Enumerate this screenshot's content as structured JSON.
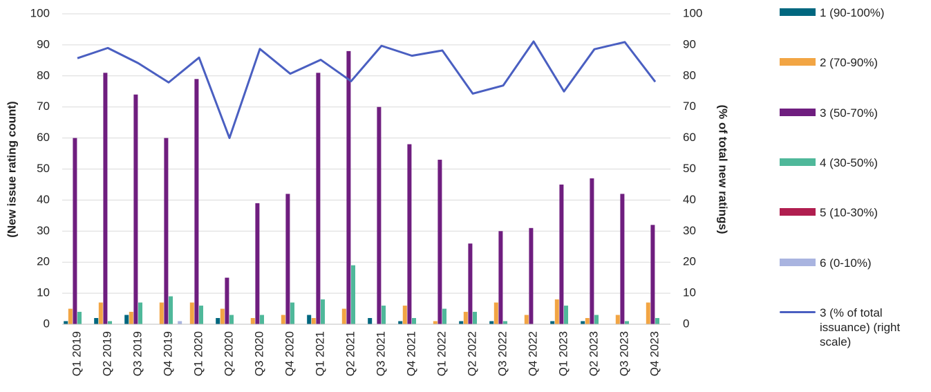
{
  "chart_data": {
    "type": "bar",
    "ylabel": "(New issue rating count)",
    "y2label": "(% of total new ratings)",
    "categories": [
      "Q1 2019",
      "Q2 2019",
      "Q3 2019",
      "Q4 2019",
      "Q1 2020",
      "Q2 2020",
      "Q3 2020",
      "Q4 2020",
      "Q1 2021",
      "Q2 2021",
      "Q3 2021",
      "Q4 2021",
      "Q1 2022",
      "Q2 2022",
      "Q3 2022",
      "Q4 2022",
      "Q1 2023",
      "Q2 2023",
      "Q3 2023",
      "Q4 2023"
    ],
    "series": [
      {
        "name": "1 (90-100%)",
        "color": "#00677f",
        "type": "bar",
        "values": [
          1,
          2,
          3,
          0,
          0,
          2,
          0,
          0,
          3,
          0,
          2,
          1,
          0,
          1,
          1,
          0,
          1,
          1,
          0,
          0
        ]
      },
      {
        "name": "2 (70-90%)",
        "color": "#f2a544",
        "type": "bar",
        "values": [
          5,
          7,
          4,
          7,
          7,
          5,
          2,
          3,
          2,
          5,
          0,
          6,
          1,
          4,
          7,
          3,
          8,
          2,
          3,
          7
        ]
      },
      {
        "name": "3 (50-70%)",
        "color": "#6f1e7f",
        "type": "bar",
        "values": [
          60,
          81,
          74,
          60,
          79,
          15,
          39,
          42,
          81,
          88,
          70,
          58,
          53,
          26,
          30,
          31,
          45,
          47,
          42,
          32
        ]
      },
      {
        "name": "4 (30-50%)",
        "color": "#4fb89a",
        "type": "bar",
        "values": [
          4,
          1,
          7,
          9,
          6,
          3,
          3,
          7,
          8,
          19,
          6,
          2,
          5,
          4,
          1,
          0,
          6,
          3,
          1,
          2
        ]
      },
      {
        "name": "5 (10-30%)",
        "color": "#b01e4f",
        "type": "bar",
        "values": [
          0,
          0,
          0,
          0,
          0,
          0,
          0,
          0,
          0,
          0,
          0,
          0,
          0,
          0,
          0,
          0,
          0,
          0,
          0,
          0
        ]
      },
      {
        "name": "6 (0-10%)",
        "color": "#a9b4e0",
        "type": "bar",
        "values": [
          0,
          0,
          0,
          1,
          0,
          0,
          0,
          0,
          0,
          0,
          0,
          0,
          0,
          0,
          0,
          0,
          0,
          0,
          0,
          0
        ]
      },
      {
        "name": "3 (% of total issuance) (right scale)",
        "color": "#4a5fc1",
        "type": "line",
        "axis": "y2",
        "values": [
          85.7,
          89,
          84.1,
          77.9,
          85.9,
          60,
          88.7,
          80.7,
          85.2,
          78.3,
          89.7,
          86.5,
          88.2,
          74.3,
          76.9,
          91.1,
          75,
          88.6,
          90.9,
          78.1
        ]
      }
    ],
    "ylim": [
      0,
      100
    ],
    "yticks": [
      0,
      10,
      20,
      30,
      40,
      50,
      60,
      70,
      80,
      90,
      100
    ],
    "y2lim": [
      0,
      100
    ],
    "y2ticks": [
      0,
      10,
      20,
      30,
      40,
      50,
      60,
      70,
      80,
      90,
      100
    ],
    "grid": true
  }
}
